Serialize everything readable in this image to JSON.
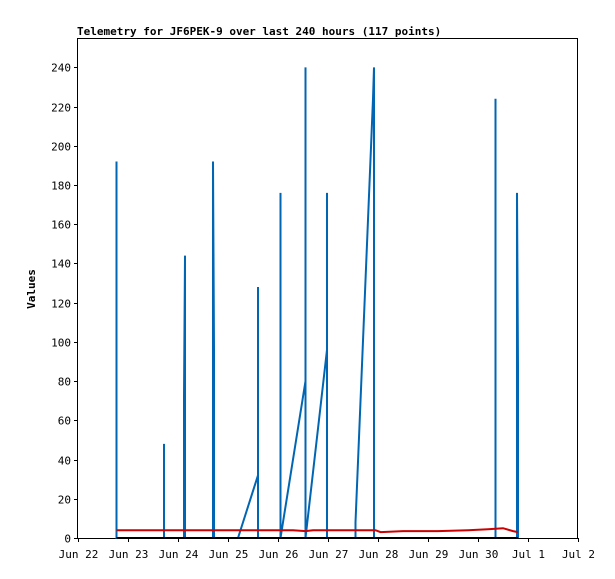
{
  "chart_data": {
    "type": "line",
    "title": "Telemetry for JF6PEK-9 over last 240 hours (117 points)",
    "xlabel": "",
    "ylabel": "Values",
    "x_ticks": [
      "Jun 22",
      "Jun 23",
      "Jun 24",
      "Jun 25",
      "Jun 26",
      "Jun 27",
      "Jun 28",
      "Jun 29",
      "Jun 30",
      "Jul 1",
      "Jul 2"
    ],
    "xlim": [
      0,
      10
    ],
    "y_ticks": [
      0,
      20,
      40,
      60,
      80,
      100,
      120,
      140,
      160,
      180,
      200,
      220,
      240
    ],
    "ylim": [
      0,
      255
    ],
    "grid": false,
    "legend": "none",
    "series": [
      {
        "color": "#0066b3",
        "points": [
          [
            0.77,
            0
          ],
          [
            0.77,
            192
          ],
          [
            0.77,
            0
          ],
          [
            1.72,
            0
          ],
          [
            1.72,
            48
          ],
          [
            1.72,
            0
          ],
          [
            2.12,
            0
          ],
          [
            2.12,
            72
          ],
          [
            2.14,
            144
          ],
          [
            2.14,
            0
          ],
          [
            2.7,
            0
          ],
          [
            2.7,
            192
          ],
          [
            2.72,
            96
          ],
          [
            2.72,
            0
          ],
          [
            3.2,
            0
          ],
          [
            3.6,
            32
          ],
          [
            3.6,
            128
          ],
          [
            3.6,
            0
          ],
          [
            4.05,
            0
          ],
          [
            4.05,
            176
          ],
          [
            4.05,
            0
          ],
          [
            4.55,
            80
          ],
          [
            4.55,
            240
          ],
          [
            4.55,
            0
          ],
          [
            4.98,
            96
          ],
          [
            4.98,
            176
          ],
          [
            4.98,
            0
          ],
          [
            5.55,
            0
          ],
          [
            5.55,
            8
          ],
          [
            5.9,
            224
          ],
          [
            5.92,
            240
          ],
          [
            5.92,
            0
          ],
          [
            8.35,
            0
          ],
          [
            8.35,
            224
          ],
          [
            8.35,
            0
          ],
          [
            8.78,
            0
          ],
          [
            8.78,
            176
          ],
          [
            8.8,
            88
          ],
          [
            8.8,
            0
          ]
        ]
      },
      {
        "color": "#cc0000",
        "points": [
          [
            0.77,
            4
          ],
          [
            1.5,
            4
          ],
          [
            2.5,
            4
          ],
          [
            3.5,
            4
          ],
          [
            4.3,
            4
          ],
          [
            4.55,
            3.5
          ],
          [
            4.7,
            4
          ],
          [
            5.5,
            4
          ],
          [
            5.95,
            4
          ],
          [
            6.05,
            3
          ],
          [
            6.5,
            3.5
          ],
          [
            7.2,
            3.5
          ],
          [
            7.8,
            4
          ],
          [
            8.2,
            4.5
          ],
          [
            8.5,
            5
          ],
          [
            8.7,
            3.5
          ],
          [
            8.8,
            3
          ]
        ]
      },
      {
        "color": "#000000",
        "points": [
          [
            0.77,
            0
          ],
          [
            8.8,
            0
          ]
        ]
      }
    ]
  }
}
